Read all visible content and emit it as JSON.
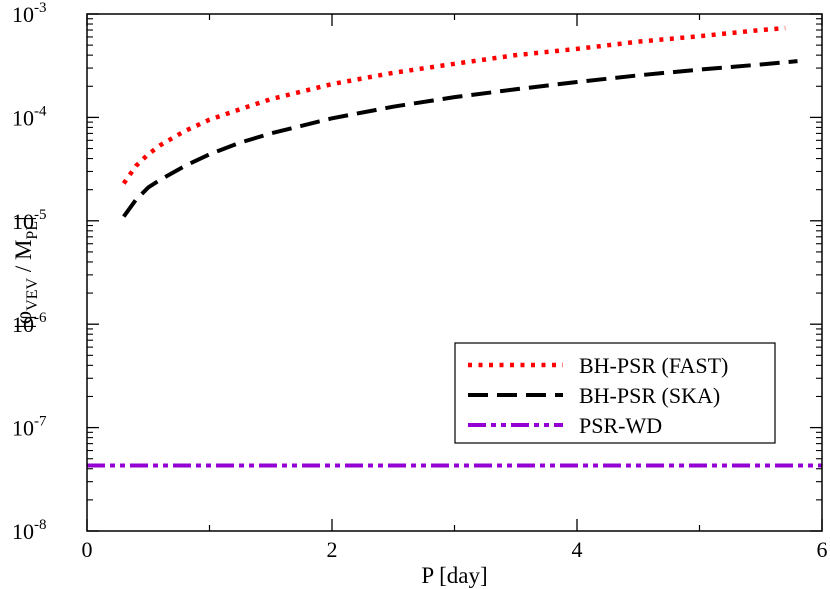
{
  "chart_data": {
    "type": "line",
    "xlabel": "P [day]",
    "ylabel": {
      "prefix": "|φ",
      "sub1": "VEV",
      "mid": " / M",
      "sub2": "PL",
      "suffix": "|"
    },
    "xlim": [
      0,
      6
    ],
    "ylim": [
      1e-08,
      0.001
    ],
    "yscale": "log",
    "x_ticks": [
      {
        "value": 0,
        "label": "0"
      },
      {
        "value": 2,
        "label": "2"
      },
      {
        "value": 4,
        "label": "4"
      },
      {
        "value": 6,
        "label": "6"
      }
    ],
    "y_ticks": [
      {
        "exp": -8,
        "base": "10",
        "power": "-8"
      },
      {
        "exp": -7,
        "base": "10",
        "power": "-7"
      },
      {
        "exp": -6,
        "base": "10",
        "power": "-6"
      },
      {
        "exp": -5,
        "base": "10",
        "power": "-5"
      },
      {
        "exp": -4,
        "base": "10",
        "power": "-4"
      },
      {
        "exp": -3,
        "base": "10",
        "power": "-3"
      }
    ],
    "legend_position": "bottom-right",
    "grid": false,
    "series": [
      {
        "name": "BH-PSR (FAST)",
        "color": "#ff0000",
        "style": "dotted",
        "x": [
          0.3,
          0.4,
          0.5,
          0.6,
          0.8,
          1.0,
          1.25,
          1.5,
          2.0,
          2.5,
          3.0,
          3.5,
          4.0,
          4.5,
          5.0,
          5.5,
          5.7
        ],
        "y": [
          2.3e-05,
          3.4e-05,
          4.4e-05,
          5.4e-05,
          7.4e-05,
          9.5e-05,
          0.00012,
          0.00015,
          0.00021,
          0.00027,
          0.00033,
          0.0004,
          0.00046,
          0.00054,
          0.00061,
          0.0007,
          0.00073
        ]
      },
      {
        "name": "BH-PSR (SKA)",
        "color": "#000000",
        "style": "dashed",
        "x": [
          0.3,
          0.4,
          0.5,
          0.6,
          0.8,
          1.0,
          1.25,
          1.5,
          2.0,
          2.5,
          3.0,
          3.5,
          4.0,
          4.5,
          5.0,
          5.5,
          5.8
        ],
        "y": [
          1.1e-05,
          1.6e-05,
          2.1e-05,
          2.5e-05,
          3.4e-05,
          4.4e-05,
          5.7e-05,
          7e-05,
          9.8e-05,
          0.000127,
          0.000157,
          0.000187,
          0.00022,
          0.000255,
          0.00029,
          0.000325,
          0.00035
        ]
      },
      {
        "name": "PSR-WD",
        "color": "#9400d3",
        "style": "dash-dot-dot",
        "x": [
          0,
          6
        ],
        "y": [
          4.3e-08,
          4.3e-08
        ]
      }
    ]
  }
}
